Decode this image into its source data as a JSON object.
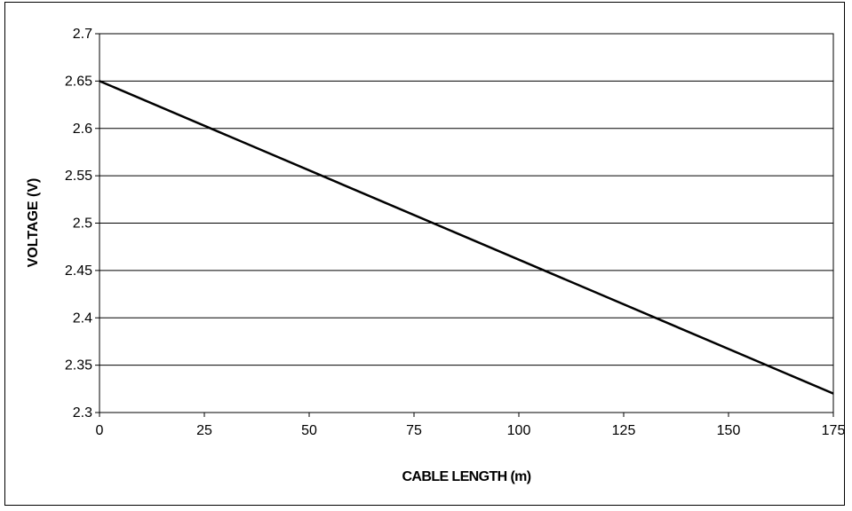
{
  "chart_data": {
    "type": "line",
    "title": "",
    "xlabel": "CABLE LENGTH (m)",
    "ylabel": "VOLTAGE (V)",
    "xlim": [
      0,
      175
    ],
    "ylim": [
      2.3,
      2.7
    ],
    "x_ticks": [
      "0",
      "25",
      "50",
      "75",
      "100",
      "125",
      "150",
      "175"
    ],
    "y_ticks": [
      "2.3",
      "2.35",
      "2.4",
      "2.45",
      "2.5",
      "2.55",
      "2.6",
      "2.65",
      "2.7"
    ],
    "grid": {
      "horizontal": true,
      "vertical": false
    },
    "legend": "none",
    "series": [
      {
        "color": "#000000",
        "x": [
          0,
          175
        ],
        "y": [
          2.65,
          2.32
        ]
      }
    ]
  }
}
